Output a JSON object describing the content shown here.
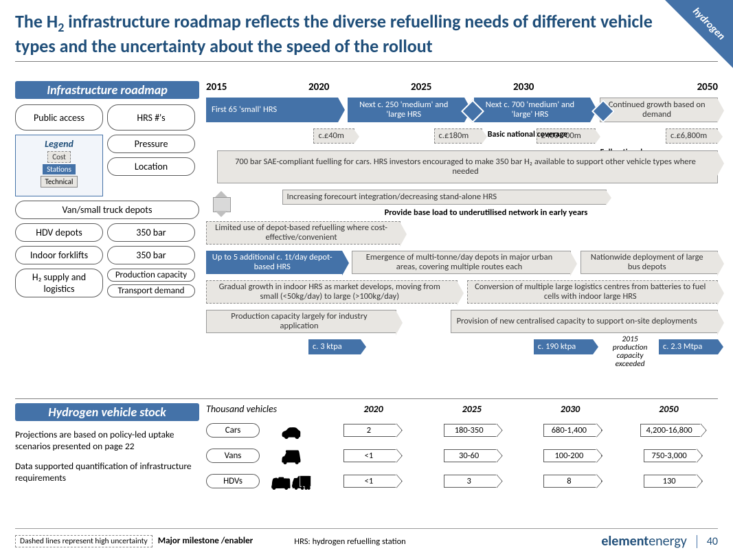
{
  "corner_tag": "hydrogen",
  "title_html": "The H<sub>2</sub> infrastructure roadmap reflects the diverse refuelling needs of different vehicle types and the uncertainty about the speed of the rollout",
  "page_number": "40",
  "brand_a": "element",
  "brand_b": "energy",
  "colors": {
    "accent": "#4472a8",
    "dark": "#1f4e79",
    "grey_fill": "#e8e6e2",
    "border": "#595959"
  },
  "section1": {
    "header": "Infrastructure roadmap"
  },
  "left_pills": {
    "public_access": "Public access",
    "hrs_nums": "HRS #'s",
    "pressure": "Pressure",
    "location": "Location",
    "van_depots": "Van/small truck depots",
    "hdv_depots": "HDV depots",
    "bar350_a": "350 bar",
    "indoor_fork": "Indoor forklifts",
    "bar350_b": "350 bar",
    "h2_supply": "H₂ supply and logistics",
    "prod_cap": "Production capacity",
    "transport": "Transport demand"
  },
  "legend": {
    "title": "Legend",
    "cost": "Cost",
    "stations": "Stations",
    "technical": "Technical"
  },
  "timeline_years": [
    "2015",
    "2020",
    "2025",
    "2030",
    "2050"
  ],
  "hrs_bars": {
    "b1": "First 65 'small' HRS",
    "b2": "Next c. 250 'medium' and 'large HRS",
    "b3": "Next c. 700 'medium' and 'large' HRS",
    "b4": "Continued growth based on demand"
  },
  "costs": {
    "c1": "c.£40m",
    "c2": "c.£180m",
    "c3": "£400-700m",
    "c4": "c.£6,800m"
  },
  "coverage": {
    "basic": "Basic national coverage",
    "full": "Full national coverage"
  },
  "tech_bars": {
    "t1": "700 bar SAE-compliant fuelling for cars. HRS investors encouraged to make 350 bar H₂ available to support other vehicle types where needed",
    "t2": "Increasing forecourt integration/decreasing stand-alone HRS",
    "t3": "Provide base load to underutilised network in early years",
    "t4": "Limited use of depot-based refuelling where cost-effective/convenient",
    "t5": "Up to 5 additional c. 1t/day depot-based HRS",
    "t6": "Emergence of multi-tonne/day depots in major urban areas, covering multiple routes each",
    "t7": "Nationwide deployment of large bus depots",
    "t8": "Gradual growth in indoor HRS as market develops, moving from small (<50kg/day) to large (>100kg/day)",
    "t9": "Conversion of multiple large logistics centres from batteries to fuel cells with indoor large HRS",
    "t10": "Production capacity largely for industry application",
    "t11": "Provision of new centralised capacity to support on-site deployments"
  },
  "ktpa": {
    "k1": "c. 3 ktpa",
    "k2": "c. 190 ktpa",
    "k3": "c. 2.3 Mtpa"
  },
  "prod_note": "2015 production capacity exceeded",
  "section2": {
    "header": "Hydrogen vehicle stock",
    "unit": "Thousand vehicles"
  },
  "stock_years": [
    "2020",
    "2025",
    "2030",
    "2050"
  ],
  "stock_notes": {
    "n1": "Projections are based on policy-led uptake scenarios presented on page 22",
    "n2": "Data supported quantification of infrastructure requirements"
  },
  "stock_rows": [
    {
      "label": "Cars",
      "icon": "🚗",
      "vals": [
        "2",
        "180-350",
        "680-1,400",
        "4,200-16,800"
      ]
    },
    {
      "label": "Vans",
      "icon": "🚐",
      "vals": [
        "<1",
        "30-60",
        "100-200",
        "750-3,000"
      ]
    },
    {
      "label": "HDVs",
      "icon": "🚌🚛",
      "vals": [
        "<1",
        "3",
        "8",
        "130"
      ]
    }
  ],
  "footer": {
    "dash": "Dashed lines represent high uncertainty",
    "mm": "Major milestone /enabler",
    "abbr": "HRS: hydrogen refuelling station"
  }
}
